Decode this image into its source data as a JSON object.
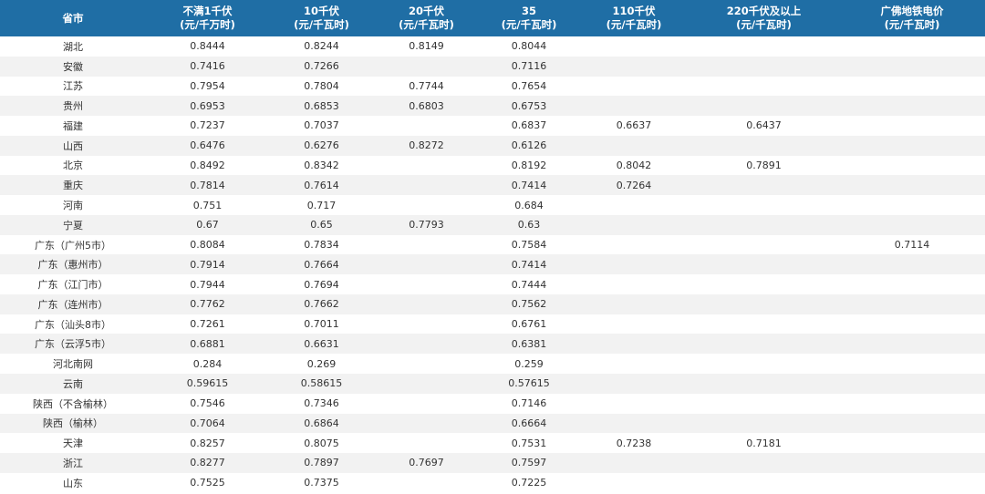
{
  "table": {
    "header": [
      [
        "省市"
      ],
      [
        "不满1千伏",
        "(元/千万时)"
      ],
      [
        "10千伏",
        "(元/千瓦时)"
      ],
      [
        "20千伏",
        "(元/千瓦时)"
      ],
      [
        "35",
        "(元/千瓦时)"
      ],
      [
        "110千伏",
        "(元/千瓦时)"
      ],
      [
        "220千伏及以上",
        "(元/千瓦时)"
      ],
      [
        "广佛地铁电价",
        "(元/千瓦时)"
      ]
    ],
    "rows": [
      [
        "湖北",
        0.8444,
        0.8244,
        0.8149,
        0.8044,
        null,
        null,
        null
      ],
      [
        "安徽",
        0.7416,
        0.7266,
        null,
        0.7116,
        null,
        null,
        null
      ],
      [
        "江苏",
        0.7954,
        0.7804,
        0.7744,
        0.7654,
        null,
        null,
        null
      ],
      [
        "贵州",
        0.6953,
        0.6853,
        0.6803,
        0.6753,
        null,
        null,
        null
      ],
      [
        "福建",
        0.7237,
        0.7037,
        null,
        0.6837,
        0.6637,
        0.6437,
        null
      ],
      [
        "山西",
        0.6476,
        0.6276,
        0.8272,
        0.6126,
        null,
        null,
        null
      ],
      [
        "北京",
        0.8492,
        0.8342,
        null,
        0.8192,
        0.8042,
        0.7891,
        null
      ],
      [
        "重庆",
        0.7814,
        0.7614,
        null,
        0.7414,
        0.7264,
        null,
        null
      ],
      [
        "河南",
        0.751,
        0.717,
        null,
        0.684,
        null,
        null,
        null
      ],
      [
        "宁夏",
        0.67,
        0.65,
        0.7793,
        0.63,
        null,
        null,
        null
      ],
      [
        "广东（广州5市）",
        0.8084,
        0.7834,
        null,
        0.7584,
        null,
        null,
        0.7114
      ],
      [
        "广东（惠州市）",
        0.7914,
        0.7664,
        null,
        0.7414,
        null,
        null,
        null
      ],
      [
        "广东（江门市）",
        0.7944,
        0.7694,
        null,
        0.7444,
        null,
        null,
        null
      ],
      [
        "广东（连州市）",
        0.7762,
        0.7662,
        null,
        0.7562,
        null,
        null,
        null
      ],
      [
        "广东（汕头8市）",
        0.7261,
        0.7011,
        null,
        0.6761,
        null,
        null,
        null
      ],
      [
        "广东（云浮5市）",
        0.6881,
        0.6631,
        null,
        0.6381,
        null,
        null,
        null
      ],
      [
        "河北南网",
        0.284,
        0.269,
        null,
        0.259,
        null,
        null,
        null
      ],
      [
        "云南",
        0.59615,
        0.58615,
        null,
        0.57615,
        null,
        null,
        null
      ],
      [
        "陕西（不含榆林）",
        0.7546,
        0.7346,
        null,
        0.7146,
        null,
        null,
        null
      ],
      [
        "陕西（榆林）",
        0.7064,
        0.6864,
        null,
        0.6664,
        null,
        null,
        null
      ],
      [
        "天津",
        0.8257,
        0.8075,
        null,
        0.7531,
        0.7238,
        0.7181,
        null
      ],
      [
        "浙江",
        0.8277,
        0.7897,
        0.7697,
        0.7597,
        null,
        null,
        null
      ],
      [
        "山东",
        0.7525,
        0.7375,
        null,
        0.7225,
        null,
        null,
        null
      ]
    ]
  }
}
